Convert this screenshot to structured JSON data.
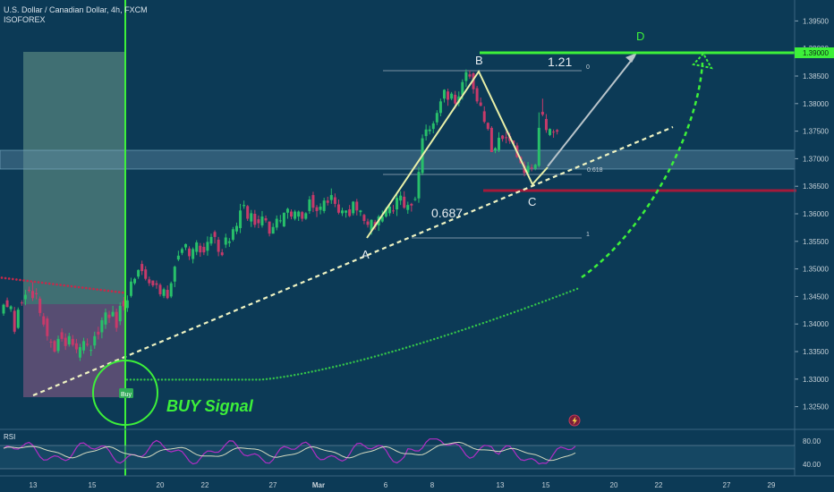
{
  "header": {
    "symbol": "U.S. Dollar / Canadian Dollar, 4h, FXCM",
    "author": "ISOFOREX"
  },
  "price_axis": {
    "ticks": [
      "1.39500",
      "1.39000",
      "1.38500",
      "1.38000",
      "1.37500",
      "1.37000",
      "1.36500",
      "1.36000",
      "1.35500",
      "1.35000",
      "1.34500",
      "1.34000",
      "1.33500",
      "1.33000",
      "1.32500"
    ],
    "current_label": "1.39000"
  },
  "time_axis": {
    "ticks": [
      "13",
      "15",
      "20",
      "22",
      "27",
      "Mar",
      "6",
      "8",
      "13",
      "15",
      "20",
      "22",
      "27",
      "29"
    ]
  },
  "rsi": {
    "label": "RSI",
    "levels": [
      "80.00",
      "40.00"
    ]
  },
  "annotations": {
    "point_a": "A",
    "point_b": "B",
    "point_c": "C",
    "point_d": "D",
    "ext_ratio": "1.21",
    "retr_ratio": "0.687",
    "fib_top": "0",
    "fib_mid": "0.618",
    "fib_bottom": "1",
    "buy_badge": "Buy",
    "buy_signal": "BUY Signal"
  },
  "colors": {
    "background": "#0c3a56",
    "bull": "#28c06a",
    "bear": "#c73a6a",
    "signal_green": "#3df03a",
    "support_red": "#a5193a",
    "pattern_yellow": "#e9f0a8"
  },
  "chart_data": {
    "type": "candlestick",
    "title": "U.S. Dollar / Canadian Dollar, 4h, FXCM",
    "y_range": [
      1.3225,
      1.3975
    ],
    "levels": {
      "resistance": 1.39,
      "support": 1.3645,
      "zone": [
        1.3685,
        1.3718
      ]
    },
    "pattern": {
      "A": 1.3555,
      "B": 1.3865,
      "C": 1.3655,
      "D": 1.39,
      "retracement": 0.687,
      "extension": 1.21
    },
    "candles": [
      [
        1.3419,
        1.3435,
        1.3415,
        1.3437
      ],
      [
        1.3443,
        1.3431,
        1.343,
        1.3448
      ],
      [
        1.3427,
        1.3432,
        1.3422,
        1.3434
      ],
      [
        1.3424,
        1.3386,
        1.3382,
        1.3431
      ],
      [
        1.3393,
        1.3426,
        1.3391,
        1.343
      ],
      [
        1.3439,
        1.3438,
        1.3433,
        1.3443
      ],
      [
        1.3445,
        1.3453,
        1.3434,
        1.3462
      ],
      [
        1.3462,
        1.3461,
        1.3457,
        1.3468
      ],
      [
        1.346,
        1.3447,
        1.3442,
        1.3476
      ],
      [
        1.3456,
        1.3454,
        1.3445,
        1.3465
      ],
      [
        1.3446,
        1.342,
        1.3414,
        1.345
      ],
      [
        1.3414,
        1.3399,
        1.3395,
        1.342
      ],
      [
        1.341,
        1.3378,
        1.337,
        1.3414
      ],
      [
        1.3368,
        1.3367,
        1.3357,
        1.3373
      ],
      [
        1.3369,
        1.335,
        1.3348,
        1.3371
      ],
      [
        1.3351,
        1.3373,
        1.3347,
        1.3379
      ],
      [
        1.3385,
        1.3373,
        1.3368,
        1.3392
      ],
      [
        1.3375,
        1.336,
        1.3353,
        1.3383
      ],
      [
        1.3363,
        1.3378,
        1.3359,
        1.3384
      ],
      [
        1.3373,
        1.3362,
        1.3359,
        1.338
      ],
      [
        1.3365,
        1.3354,
        1.3347,
        1.3373
      ],
      [
        1.3339,
        1.3358,
        1.3333,
        1.3364
      ],
      [
        1.3352,
        1.3369,
        1.3346,
        1.3375
      ],
      [
        1.3364,
        1.3362,
        1.3359,
        1.3374
      ],
      [
        1.3353,
        1.3353,
        1.3342,
        1.3361
      ],
      [
        1.3361,
        1.3378,
        1.3355,
        1.3386
      ],
      [
        1.3386,
        1.3381,
        1.3372,
        1.3395
      ],
      [
        1.3385,
        1.3407,
        1.3374,
        1.3412
      ],
      [
        1.3399,
        1.3421,
        1.3391,
        1.3428
      ],
      [
        1.3417,
        1.3411,
        1.3402,
        1.3424
      ],
      [
        1.3414,
        1.3422,
        1.3413,
        1.3433
      ],
      [
        1.3422,
        1.3393,
        1.3386,
        1.3428
      ],
      [
        1.3405,
        1.3433,
        1.3398,
        1.3439
      ],
      [
        1.3442,
        1.3432,
        1.3425,
        1.3449
      ],
      [
        1.3429,
        1.3443,
        1.3422,
        1.3452
      ],
      [
        1.3451,
        1.3477,
        1.3448,
        1.3484
      ],
      [
        1.3474,
        1.3482,
        1.3471,
        1.3484
      ],
      [
        1.3486,
        1.3498,
        1.3482,
        1.3499
      ],
      [
        1.3509,
        1.3496,
        1.3489,
        1.3515
      ],
      [
        1.3499,
        1.3482,
        1.3479,
        1.3505
      ],
      [
        1.3481,
        1.3474,
        1.3469,
        1.3486
      ],
      [
        1.3479,
        1.347,
        1.3467,
        1.3479
      ],
      [
        1.3474,
        1.3471,
        1.3464,
        1.3479
      ],
      [
        1.3471,
        1.3454,
        1.345,
        1.3474
      ],
      [
        1.3451,
        1.3463,
        1.3447,
        1.3466
      ],
      [
        1.3462,
        1.3447,
        1.3445,
        1.347
      ],
      [
        1.345,
        1.3474,
        1.3447,
        1.3477
      ],
      [
        1.3477,
        1.3504,
        1.3467,
        1.3506
      ],
      [
        1.3517,
        1.3524,
        1.3514,
        1.3533
      ],
      [
        1.3529,
        1.3536,
        1.3525,
        1.3539
      ],
      [
        1.3539,
        1.3545,
        1.3534,
        1.3546
      ],
      [
        1.3537,
        1.3523,
        1.3516,
        1.3541
      ],
      [
        1.3518,
        1.3536,
        1.351,
        1.3539
      ],
      [
        1.3531,
        1.3548,
        1.3525,
        1.3552
      ],
      [
        1.3542,
        1.353,
        1.3522,
        1.3547
      ],
      [
        1.354,
        1.353,
        1.3525,
        1.3547
      ],
      [
        1.3533,
        1.3549,
        1.3524,
        1.3559
      ],
      [
        1.3546,
        1.3558,
        1.3542,
        1.3564
      ],
      [
        1.3567,
        1.3558,
        1.3546,
        1.357
      ],
      [
        1.3553,
        1.3531,
        1.3523,
        1.3558
      ],
      [
        1.353,
        1.3525,
        1.3523,
        1.3536
      ],
      [
        1.3544,
        1.3557,
        1.3538,
        1.3564
      ],
      [
        1.3547,
        1.355,
        1.354,
        1.3556
      ],
      [
        1.3553,
        1.3572,
        1.355,
        1.3576
      ],
      [
        1.3568,
        1.3578,
        1.3563,
        1.3584
      ],
      [
        1.3574,
        1.3606,
        1.3565,
        1.3618
      ],
      [
        1.3614,
        1.3616,
        1.3609,
        1.3624
      ],
      [
        1.3614,
        1.3591,
        1.3587,
        1.3616
      ],
      [
        1.3586,
        1.3601,
        1.3576,
        1.3607
      ],
      [
        1.36,
        1.358,
        1.3575,
        1.3607
      ],
      [
        1.359,
        1.3583,
        1.3574,
        1.3597
      ],
      [
        1.3579,
        1.3595,
        1.3575,
        1.3605
      ],
      [
        1.3592,
        1.3588,
        1.3584,
        1.3597
      ],
      [
        1.3586,
        1.3564,
        1.3559,
        1.3586
      ],
      [
        1.3564,
        1.3576,
        1.3564,
        1.3583
      ],
      [
        1.3575,
        1.3591,
        1.357,
        1.3597
      ],
      [
        1.3588,
        1.3588,
        1.3583,
        1.3598
      ],
      [
        1.3577,
        1.3602,
        1.3576,
        1.3602
      ],
      [
        1.3602,
        1.3609,
        1.3591,
        1.3611
      ],
      [
        1.3604,
        1.3595,
        1.359,
        1.3608
      ],
      [
        1.3591,
        1.3604,
        1.3588,
        1.3607
      ],
      [
        1.3595,
        1.3604,
        1.3587,
        1.3606
      ],
      [
        1.3603,
        1.3591,
        1.3586,
        1.3605
      ],
      [
        1.3591,
        1.3601,
        1.3589,
        1.3603
      ],
      [
        1.3605,
        1.3626,
        1.36,
        1.3632
      ],
      [
        1.3634,
        1.3611,
        1.3603,
        1.364
      ],
      [
        1.3612,
        1.3605,
        1.3594,
        1.3616
      ],
      [
        1.3607,
        1.3613,
        1.3599,
        1.3619
      ],
      [
        1.3605,
        1.3624,
        1.3601,
        1.3629
      ],
      [
        1.3624,
        1.362,
        1.3615,
        1.3631
      ],
      [
        1.3625,
        1.3634,
        1.3618,
        1.3646
      ],
      [
        1.363,
        1.3618,
        1.3612,
        1.3637
      ],
      [
        1.3617,
        1.3602,
        1.3599,
        1.3626
      ],
      [
        1.3601,
        1.3606,
        1.3596,
        1.3611
      ],
      [
        1.3602,
        1.3606,
        1.3593,
        1.3606
      ],
      [
        1.3608,
        1.3596,
        1.3594,
        1.3616
      ],
      [
        1.3601,
        1.3622,
        1.3597,
        1.3623
      ],
      [
        1.3622,
        1.3606,
        1.3597,
        1.3627
      ],
      [
        1.3603,
        1.3606,
        1.3596,
        1.3607
      ],
      [
        1.3598,
        1.3587,
        1.3581,
        1.36
      ],
      [
        1.3586,
        1.358,
        1.3575,
        1.3591
      ],
      [
        1.357,
        1.3589,
        1.3562,
        1.359
      ],
      [
        1.3585,
        1.3576,
        1.3571,
        1.3589
      ],
      [
        1.3579,
        1.3595,
        1.3569,
        1.3598
      ],
      [
        1.3586,
        1.3595,
        1.3584,
        1.3606
      ],
      [
        1.3595,
        1.3609,
        1.3593,
        1.3612
      ],
      [
        1.3601,
        1.3613,
        1.3596,
        1.3617
      ],
      [
        1.3606,
        1.3605,
        1.36,
        1.3616
      ],
      [
        1.3608,
        1.3629,
        1.3596,
        1.3637
      ],
      [
        1.3624,
        1.3633,
        1.3616,
        1.3641
      ],
      [
        1.3631,
        1.3611,
        1.3609,
        1.3641
      ],
      [
        1.3607,
        1.3616,
        1.36,
        1.3622
      ],
      [
        1.3618,
        1.3615,
        1.3604,
        1.362
      ],
      [
        1.3626,
        1.3627,
        1.3623,
        1.3631
      ],
      [
        1.3628,
        1.3676,
        1.362,
        1.3685
      ],
      [
        1.3674,
        1.3737,
        1.367,
        1.3744
      ],
      [
        1.3741,
        1.3753,
        1.3733,
        1.3762
      ],
      [
        1.375,
        1.3753,
        1.3744,
        1.376
      ],
      [
        1.3754,
        1.3764,
        1.3746,
        1.3768
      ],
      [
        1.3766,
        1.3783,
        1.3761,
        1.3788
      ],
      [
        1.3783,
        1.3804,
        1.3777,
        1.3809
      ],
      [
        1.3809,
        1.3825,
        1.3802,
        1.3826
      ],
      [
        1.3822,
        1.3807,
        1.3796,
        1.3827
      ],
      [
        1.3809,
        1.3818,
        1.3806,
        1.3821
      ],
      [
        1.3816,
        1.38,
        1.3791,
        1.3823
      ],
      [
        1.3801,
        1.3813,
        1.3795,
        1.3822
      ],
      [
        1.3816,
        1.3839,
        1.3807,
        1.3844
      ],
      [
        1.3841,
        1.3857,
        1.383,
        1.3862
      ],
      [
        1.3853,
        1.3849,
        1.3845,
        1.386
      ],
      [
        1.3855,
        1.3826,
        1.3818,
        1.3857
      ],
      [
        1.3828,
        1.3804,
        1.38,
        1.3832
      ],
      [
        1.3802,
        1.3796,
        1.3795,
        1.3811
      ],
      [
        1.3786,
        1.3767,
        1.3764,
        1.3795
      ],
      [
        1.3765,
        1.3754,
        1.3751,
        1.3766
      ],
      [
        1.3756,
        1.3712,
        1.3712,
        1.3759
      ],
      [
        1.3715,
        1.3719,
        1.371,
        1.3721
      ],
      [
        1.3716,
        1.3738,
        1.3712,
        1.3748
      ],
      [
        1.3742,
        1.3736,
        1.3731,
        1.3743
      ],
      [
        1.3739,
        1.3738,
        1.3728,
        1.3749
      ],
      [
        1.3741,
        1.3732,
        1.3727,
        1.3747
      ],
      [
        1.3733,
        1.3727,
        1.3725,
        1.3732
      ],
      [
        1.3724,
        1.3703,
        1.3701,
        1.3729
      ],
      [
        1.3703,
        1.3692,
        1.3691,
        1.3705
      ],
      [
        1.3688,
        1.3674,
        1.3668,
        1.3695
      ],
      [
        1.3674,
        1.3687,
        1.3668,
        1.3694
      ],
      [
        1.3684,
        1.3682,
        1.3677,
        1.369
      ],
      [
        1.3682,
        1.3689,
        1.3679,
        1.3691
      ],
      [
        1.3687,
        1.3756,
        1.3684,
        1.3784
      ],
      [
        1.3785,
        1.378,
        1.3777,
        1.3809
      ],
      [
        1.3772,
        1.3752,
        1.3747,
        1.3781
      ],
      [
        1.3743,
        1.3754,
        1.3741,
        1.3755
      ],
      [
        1.3749,
        1.3748,
        1.3738,
        1.3753
      ],
      [
        1.3752,
        1.3749,
        1.3744,
        1.3754
      ]
    ],
    "supertrend_red": [
      1.3484,
      1.3457
    ],
    "supertrend_green": [
      1.3299,
      1.3467
    ],
    "rsi_levels": [
      80,
      40
    ]
  }
}
